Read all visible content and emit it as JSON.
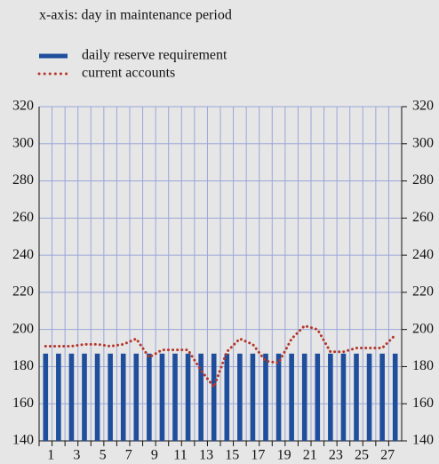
{
  "chart_data": {
    "type": "bar_line",
    "subtitle": "x-axis: day in maintenance period",
    "categories": [
      "1",
      null,
      "3",
      null,
      "5",
      null,
      "7",
      null,
      "9",
      null,
      "11",
      null,
      "13",
      null,
      "15",
      null,
      "17",
      null,
      "19",
      null,
      "21",
      null,
      "23",
      null,
      "25",
      null,
      "27",
      null
    ],
    "series": [
      {
        "name": "daily reserve requirement",
        "type": "bar",
        "color": "#1f4e9c",
        "values": [
          187,
          187,
          187,
          187,
          187,
          187,
          187,
          187,
          187,
          187,
          187,
          187,
          187,
          187,
          187,
          187,
          187,
          187,
          187,
          187,
          187,
          187,
          187,
          187,
          187,
          187,
          187,
          187
        ]
      },
      {
        "name": "current accounts",
        "type": "line",
        "color": "#b5382c",
        "values": [
          191,
          191,
          191,
          192,
          192,
          191,
          192,
          195,
          185,
          189,
          189,
          189,
          178,
          169,
          188,
          195,
          192,
          183,
          182,
          195,
          202,
          200,
          188,
          188,
          190,
          190,
          190,
          197
        ]
      }
    ],
    "ylim": [
      140,
      320
    ],
    "yticks": [
      140,
      160,
      180,
      200,
      220,
      240,
      260,
      280,
      300,
      320
    ],
    "y2lim": [
      140,
      320
    ],
    "y2ticks": [
      140,
      160,
      180,
      200,
      220,
      240,
      260,
      280,
      300,
      320
    ],
    "grid": true
  }
}
